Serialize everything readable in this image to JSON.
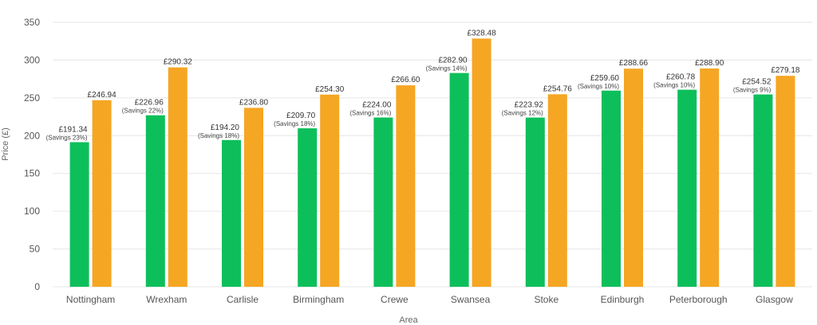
{
  "chart_data": {
    "type": "bar",
    "xlabel": "Area",
    "ylabel": "Price (£)",
    "ylim": [
      0,
      350
    ],
    "yticks": [
      0,
      50,
      100,
      150,
      200,
      250,
      300,
      350
    ],
    "grid": true,
    "categories": [
      "Nottingham",
      "Wrexham",
      "Carlisle",
      "Birmingham",
      "Crewe",
      "Swansea",
      "Stoke",
      "Edinburgh",
      "Peterborough",
      "Glasgow"
    ],
    "series": [
      {
        "color": "#0dbf5a",
        "values": [
          191.34,
          226.96,
          194.2,
          209.7,
          224.0,
          282.9,
          223.92,
          259.6,
          260.78,
          254.52
        ],
        "labels": [
          "£191.34",
          "£226.96",
          "£194.20",
          "£209.70",
          "£224.00",
          "£282.90",
          "£223.92",
          "£259.60",
          "£260.78",
          "£254.52"
        ],
        "savings": [
          "(Savings 23%)",
          "(Savings 22%)",
          "(Savings 18%)",
          "(Savings 18%)",
          "(Savings 16%)",
          "(Savings 14%)",
          "(Savings 12%)",
          "(Savings 10%)",
          "(Savings 10%)",
          "(Savings 9%)"
        ]
      },
      {
        "color": "#f5a623",
        "values": [
          246.94,
          290.32,
          236.8,
          254.3,
          266.6,
          328.48,
          254.76,
          288.66,
          288.9,
          279.18
        ],
        "labels": [
          "£246.94",
          "£290.32",
          "£236.80",
          "£254.30",
          "£266.60",
          "£328.48",
          "£254.76",
          "£288.66",
          "£288.90",
          "£279.18"
        ]
      }
    ]
  }
}
